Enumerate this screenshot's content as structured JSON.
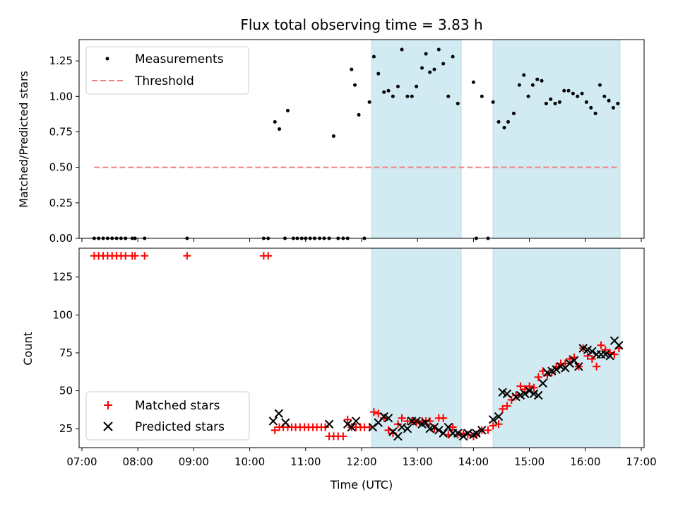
{
  "chart_data": [
    {
      "type": "scatter",
      "title": "Flux total observing time = 3.83 h",
      "xlabel": "",
      "ylabel": "Matched/Predicted stars",
      "ylim": [
        0,
        1.4
      ],
      "yticks": [
        "0.00",
        "0.25",
        "0.50",
        "0.75",
        "1.00",
        "1.25"
      ],
      "legend": {
        "placement": "upper-left",
        "entries": [
          {
            "label": "Measurements",
            "marker": "dot",
            "color": "#000000"
          },
          {
            "label": "Threshold",
            "marker": "dashed-line",
            "color": "#f08080"
          }
        ]
      },
      "threshold": {
        "value": 0.5,
        "x_start": 7.22,
        "x_end": 16.6,
        "color": "#f08080"
      },
      "shaded_intervals": [
        [
          12.18,
          13.78
        ],
        [
          14.35,
          16.62
        ]
      ],
      "shade_color": "#add8e6",
      "series": [
        {
          "name": "Measurements",
          "x": [
            7.22,
            7.3,
            7.38,
            7.46,
            7.54,
            7.62,
            7.7,
            7.78,
            7.9,
            7.95,
            8.12,
            8.88,
            10.25,
            10.33,
            10.45,
            10.53,
            10.63,
            10.68,
            10.78,
            10.85,
            10.93,
            11.0,
            11.08,
            11.16,
            11.25,
            11.33,
            11.42,
            11.5,
            11.58,
            11.67,
            11.75,
            11.82,
            11.88,
            11.95,
            12.05,
            12.14,
            12.22,
            12.3,
            12.4,
            12.48,
            12.56,
            12.65,
            12.72,
            12.82,
            12.9,
            12.98,
            13.08,
            13.15,
            13.22,
            13.3,
            13.38,
            13.46,
            13.55,
            13.63,
            13.72,
            14.0,
            14.05,
            14.15,
            14.26,
            14.35,
            14.45,
            14.55,
            14.62,
            14.72,
            14.82,
            14.9,
            14.98,
            15.06,
            15.14,
            15.22,
            15.3,
            15.38,
            15.46,
            15.54,
            15.62,
            15.7,
            15.78,
            15.86,
            15.94,
            16.02,
            16.1,
            16.18,
            16.26,
            16.34,
            16.42,
            16.5,
            16.58
          ],
          "y": [
            0,
            0,
            0,
            0,
            0,
            0,
            0,
            0,
            0,
            0,
            0,
            0,
            0,
            0,
            0.82,
            0.77,
            0,
            0.9,
            0,
            0,
            0,
            0,
            0,
            0,
            0,
            0,
            0,
            0.72,
            0,
            0,
            0,
            1.19,
            1.08,
            0.87,
            0,
            0.96,
            1.28,
            1.16,
            1.03,
            1.04,
            1.0,
            1.07,
            1.33,
            1.0,
            1.0,
            1.07,
            1.2,
            1.3,
            1.17,
            1.19,
            1.33,
            1.23,
            1.0,
            1.28,
            0.95,
            1.1,
            0,
            1.0,
            0,
            0.96,
            0.82,
            0.78,
            0.82,
            0.88,
            1.08,
            1.15,
            1.0,
            1.08,
            1.12,
            1.11,
            0.95,
            0.98,
            0.95,
            0.96,
            1.04,
            1.04,
            1.02,
            1.0,
            1.02,
            0.96,
            0.92,
            0.88,
            1.08,
            1.0,
            0.97,
            0.92,
            0.95
          ]
        }
      ]
    },
    {
      "type": "scatter",
      "title": "",
      "xlabel": "Time (UTC)",
      "ylabel": "Count",
      "xlim": [
        6.95,
        17.05
      ],
      "ylim": [
        12.5,
        144
      ],
      "xticks": [
        "07:00",
        "08:00",
        "09:00",
        "10:00",
        "11:00",
        "12:00",
        "13:00",
        "14:00",
        "15:00",
        "16:00",
        "17:00"
      ],
      "yticks": [
        "25",
        "50",
        "75",
        "100",
        "125"
      ],
      "legend": {
        "placement": "lower-left",
        "entries": [
          {
            "label": "Matched stars",
            "marker": "plus",
            "color": "#ff0000"
          },
          {
            "label": "Predicted stars",
            "marker": "x",
            "color": "#000000"
          }
        ]
      },
      "shaded_intervals": [
        [
          12.18,
          13.78
        ],
        [
          14.35,
          16.62
        ]
      ],
      "shade_color": "#add8e6",
      "series": [
        {
          "name": "Matched stars",
          "x": [
            7.22,
            7.3,
            7.38,
            7.46,
            7.54,
            7.62,
            7.7,
            7.78,
            7.9,
            7.95,
            8.12,
            8.88,
            10.25,
            10.33,
            10.45,
            10.53,
            10.6,
            10.68,
            10.75,
            10.82,
            10.9,
            10.98,
            11.05,
            11.13,
            11.2,
            11.28,
            11.35,
            11.42,
            11.5,
            11.58,
            11.67,
            11.75,
            11.82,
            11.9,
            11.98,
            12.05,
            12.14,
            12.22,
            12.3,
            12.4,
            12.48,
            12.56,
            12.65,
            12.72,
            12.82,
            12.9,
            12.98,
            13.08,
            13.15,
            13.22,
            13.3,
            13.38,
            13.46,
            13.55,
            13.63,
            13.72,
            13.82,
            13.9,
            14.0,
            14.05,
            14.15,
            14.26,
            14.35,
            14.45,
            14.52,
            14.6,
            14.68,
            14.76,
            14.84,
            14.92,
            15.0,
            15.08,
            15.16,
            15.24,
            15.32,
            15.4,
            15.48,
            15.56,
            15.64,
            15.72,
            15.8,
            15.88,
            15.96,
            16.04,
            16.12,
            16.2,
            16.28,
            16.36,
            16.44,
            16.52,
            16.6
          ],
          "y": [
            139,
            139,
            139,
            139,
            139,
            139,
            139,
            139,
            139,
            139,
            139,
            139,
            139,
            139,
            24,
            26,
            26,
            26,
            26,
            26,
            26,
            26,
            26,
            26,
            26,
            26,
            26,
            20,
            20,
            20,
            20,
            31,
            26,
            26,
            26,
            26,
            26,
            36,
            35,
            32,
            24,
            22,
            28,
            32,
            30,
            30,
            29,
            30,
            30,
            30,
            25,
            32,
            32,
            21,
            26,
            21,
            22,
            21,
            20,
            21,
            24,
            24,
            27,
            28,
            38,
            40,
            44,
            47,
            53,
            51,
            53,
            52,
            59,
            63,
            60,
            62,
            66,
            68,
            68,
            71,
            72,
            66,
            78,
            73,
            71,
            66,
            80,
            77,
            75,
            74,
            78
          ]
        },
        {
          "name": "Predicted stars",
          "x": [
            10.42,
            10.52,
            10.64,
            11.42,
            11.75,
            11.82,
            11.9,
            12.2,
            12.3,
            12.4,
            12.48,
            12.56,
            12.65,
            12.72,
            12.82,
            12.9,
            12.98,
            13.08,
            13.15,
            13.22,
            13.3,
            13.38,
            13.46,
            13.55,
            13.63,
            13.72,
            13.82,
            13.9,
            14.0,
            14.05,
            14.15,
            14.35,
            14.45,
            14.52,
            14.6,
            14.76,
            14.84,
            14.92,
            15.0,
            15.08,
            15.16,
            15.24,
            15.32,
            15.4,
            15.48,
            15.56,
            15.64,
            15.72,
            15.8,
            15.88,
            15.96,
            16.04,
            16.12,
            16.2,
            16.28,
            16.36,
            16.44,
            16.52,
            16.6
          ],
          "y": [
            30,
            35,
            29,
            28,
            28,
            26,
            30,
            26,
            29,
            33,
            32,
            23,
            20,
            26,
            25,
            30,
            30,
            28,
            29,
            25,
            26,
            24,
            22,
            26,
            22,
            22,
            20,
            22,
            21,
            22,
            24,
            31,
            33,
            49,
            48,
            46,
            47,
            48,
            50,
            48,
            47,
            55,
            62,
            63,
            64,
            66,
            65,
            68,
            70,
            66,
            78,
            77,
            76,
            74,
            74,
            74,
            73,
            83,
            80
          ]
        }
      ]
    }
  ]
}
